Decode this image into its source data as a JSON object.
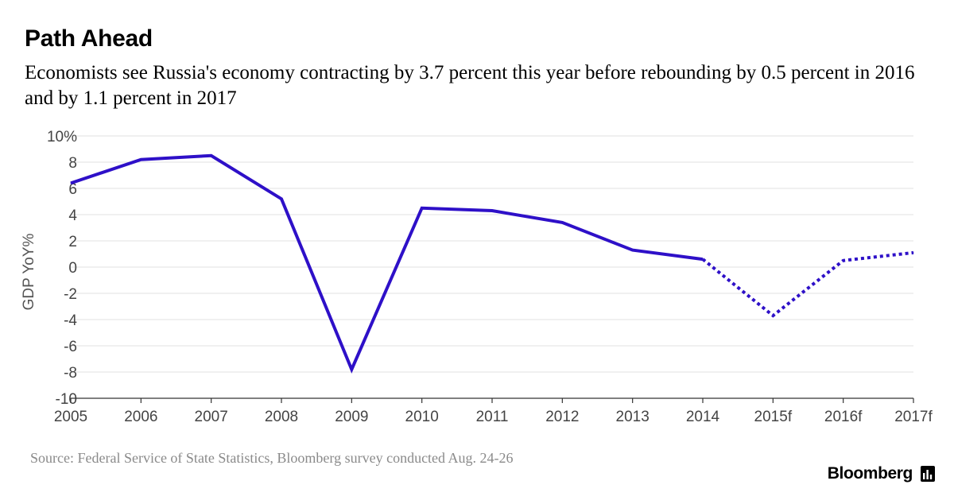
{
  "header": {
    "title": "Path Ahead",
    "subtitle": "Economists see Russia's economy contracting by 3.7 percent this year before rebounding by 0.5 percent in 2016 and by 1.1 percent in 2017"
  },
  "footer": {
    "source": "Source: Federal Service of State Statistics, Bloomberg survey conducted Aug. 24-26",
    "brand": "Bloomberg",
    "brand_icon": "bloomberg-terminal-icon"
  },
  "colors": {
    "line": "#2e10c8",
    "grid": "#e2e2e2",
    "axis": "#333333",
    "tick_text": "#444444",
    "ylabel_text": "#555555"
  },
  "chart_data": {
    "type": "line",
    "title": "",
    "xlabel": "",
    "ylabel": "GDP YoY%",
    "categories": [
      "2005",
      "2006",
      "2007",
      "2008",
      "2009",
      "2010",
      "2011",
      "2012",
      "2013",
      "2014",
      "2015f",
      "2016f",
      "2017f"
    ],
    "values": [
      6.4,
      8.2,
      8.5,
      5.2,
      -7.8,
      4.5,
      4.3,
      3.4,
      1.3,
      0.6,
      -3.7,
      0.5,
      1.1
    ],
    "actual_through": "2014",
    "forecast_from": "2014",
    "forecast_style": "dotted",
    "ylim": [
      -10,
      10
    ],
    "yticks": [
      10,
      8,
      6,
      4,
      2,
      0,
      -2,
      -4,
      -6,
      -8,
      -10
    ],
    "ytick_labels": [
      "10%",
      "8",
      "6",
      "4",
      "2",
      "0",
      "-2",
      "-4",
      "-6",
      "-8",
      "-10"
    ],
    "grid": true,
    "legend": "none"
  }
}
